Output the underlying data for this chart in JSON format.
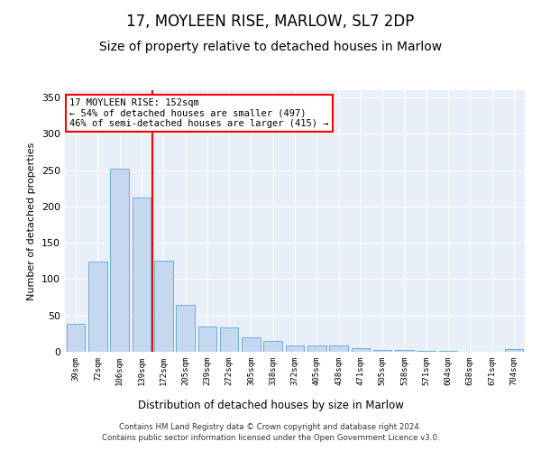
{
  "title": "17, MOYLEEN RISE, MARLOW, SL7 2DP",
  "subtitle": "Size of property relative to detached houses in Marlow",
  "xlabel": "Distribution of detached houses by size in Marlow",
  "ylabel": "Number of detached properties",
  "categories": [
    "39sqm",
    "72sqm",
    "106sqm",
    "139sqm",
    "172sqm",
    "205sqm",
    "239sqm",
    "272sqm",
    "305sqm",
    "338sqm",
    "372sqm",
    "405sqm",
    "438sqm",
    "471sqm",
    "505sqm",
    "538sqm",
    "571sqm",
    "604sqm",
    "638sqm",
    "671sqm",
    "704sqm"
  ],
  "values": [
    38,
    124,
    252,
    212,
    125,
    65,
    35,
    33,
    20,
    15,
    9,
    9,
    9,
    5,
    3,
    2,
    1,
    1,
    0,
    0,
    4
  ],
  "bar_color": "#c5d8f0",
  "bar_edge_color": "#6baed6",
  "vline_x": 3.5,
  "vline_color": "red",
  "annotation_line1": "17 MOYLEEN RISE: 152sqm",
  "annotation_line2": "← 54% of detached houses are smaller (497)",
  "annotation_line3": "46% of semi-detached houses are larger (415) →",
  "annotation_box_color": "white",
  "annotation_box_edge_color": "red",
  "footer": "Contains HM Land Registry data © Crown copyright and database right 2024.\nContains public sector information licensed under the Open Government Licence v3.0.",
  "ylim": [
    0,
    360
  ],
  "yticks": [
    0,
    50,
    100,
    150,
    200,
    250,
    300,
    350
  ],
  "bg_color": "#e8eff8",
  "title_fontsize": 12,
  "subtitle_fontsize": 10
}
